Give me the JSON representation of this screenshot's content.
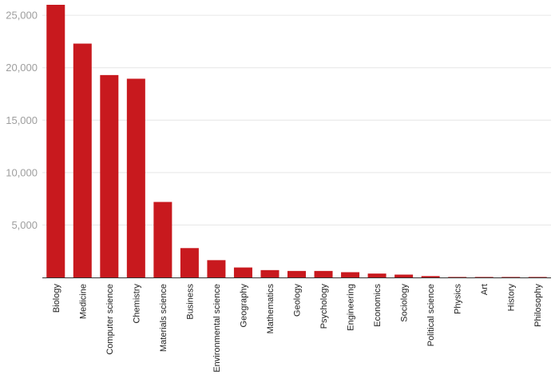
{
  "chart_data": {
    "type": "bar",
    "title": "",
    "xlabel": "",
    "ylabel": "",
    "categories": [
      "Biology",
      "Medicine",
      "Computer science",
      "Chemistry",
      "Materials science",
      "Business",
      "Environmental science",
      "Geography",
      "Mathematics",
      "Geology",
      "Psychology",
      "Engineering",
      "Economics",
      "Sociology",
      "Political science",
      "Physics",
      "Art",
      "History",
      "Philosophy"
    ],
    "values": [
      26000,
      22300,
      19300,
      18950,
      7200,
      2800,
      1650,
      950,
      700,
      620,
      620,
      500,
      370,
      270,
      130,
      30,
      20,
      15,
      10
    ],
    "ylim": [
      0,
      26000
    ],
    "yticks": [
      0,
      5000,
      10000,
      15000,
      20000,
      25000
    ],
    "ytick_labels": [
      "",
      "5,000",
      "10,000",
      "15,000",
      "20,000",
      "25,000"
    ],
    "bar_color": "#c8191e",
    "grid": true,
    "legend": "none"
  }
}
